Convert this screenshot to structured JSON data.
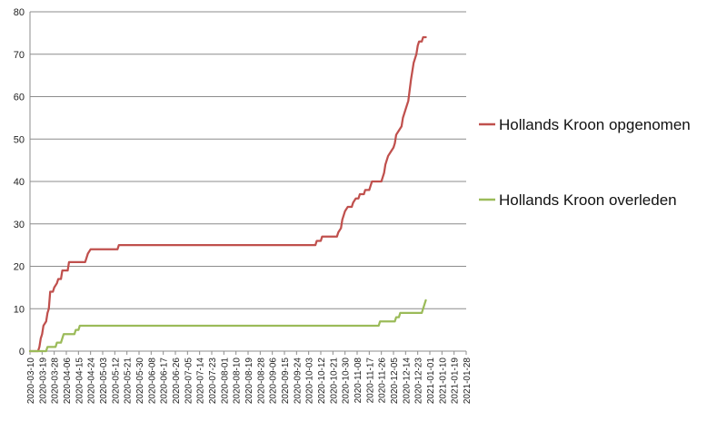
{
  "chart_data": {
    "type": "line",
    "title": "",
    "xlabel": "",
    "ylabel": "",
    "ylim": [
      0,
      80
    ],
    "yticks": [
      0,
      10,
      20,
      30,
      40,
      50,
      60,
      70,
      80
    ],
    "xlim": [
      "2020-03-10",
      "2021-01-28"
    ],
    "xtick_labels": [
      "2020-03-10",
      "2020-03-19",
      "2020-03-28",
      "2020-04-06",
      "2020-04-15",
      "2020-04-24",
      "2020-05-03",
      "2020-05-12",
      "2020-05-21",
      "2020-05-30",
      "2020-06-08",
      "2020-06-17",
      "2020-06-26",
      "2020-07-05",
      "2020-07-14",
      "2020-07-23",
      "2020-08-01",
      "2020-08-10",
      "2020-08-19",
      "2020-08-28",
      "2020-09-06",
      "2020-09-15",
      "2020-09-24",
      "2020-10-03",
      "2020-10-12",
      "2020-10-21",
      "2020-10-30",
      "2020-11-08",
      "2020-11-17",
      "2020-11-26",
      "2020-12-05",
      "2020-12-14",
      "2020-12-23",
      "2021-01-01",
      "2021-01-10",
      "2021-01-19",
      "2021-01-28"
    ],
    "grid": "horizontal",
    "legend_position": "right",
    "series": [
      {
        "name": "Hollands Kroon opgenomen",
        "color": "#c0504d",
        "points": [
          [
            "2020-03-10",
            0
          ],
          [
            "2020-03-16",
            0
          ],
          [
            "2020-03-17",
            1
          ],
          [
            "2020-03-18",
            3
          ],
          [
            "2020-03-19",
            4
          ],
          [
            "2020-03-20",
            6
          ],
          [
            "2020-03-22",
            7
          ],
          [
            "2020-03-23",
            9
          ],
          [
            "2020-03-24",
            10
          ],
          [
            "2020-03-25",
            14
          ],
          [
            "2020-03-27",
            14
          ],
          [
            "2020-03-28",
            15
          ],
          [
            "2020-03-30",
            16
          ],
          [
            "2020-03-31",
            17
          ],
          [
            "2020-04-02",
            17
          ],
          [
            "2020-04-03",
            19
          ],
          [
            "2020-04-07",
            19
          ],
          [
            "2020-04-08",
            21
          ],
          [
            "2020-04-20",
            21
          ],
          [
            "2020-04-22",
            23
          ],
          [
            "2020-04-24",
            24
          ],
          [
            "2020-05-14",
            24
          ],
          [
            "2020-05-15",
            25
          ],
          [
            "2020-10-08",
            25
          ],
          [
            "2020-10-09",
            26
          ],
          [
            "2020-10-12",
            26
          ],
          [
            "2020-10-13",
            27
          ],
          [
            "2020-10-24",
            27
          ],
          [
            "2020-10-25",
            28
          ],
          [
            "2020-10-27",
            29
          ],
          [
            "2020-10-28",
            31
          ],
          [
            "2020-10-30",
            33
          ],
          [
            "2020-11-01",
            34
          ],
          [
            "2020-11-04",
            34
          ],
          [
            "2020-11-05",
            35
          ],
          [
            "2020-11-07",
            36
          ],
          [
            "2020-11-09",
            36
          ],
          [
            "2020-11-10",
            37
          ],
          [
            "2020-11-13",
            37
          ],
          [
            "2020-11-14",
            38
          ],
          [
            "2020-11-17",
            38
          ],
          [
            "2020-11-18",
            39
          ],
          [
            "2020-11-19",
            40
          ],
          [
            "2020-11-26",
            40
          ],
          [
            "2020-11-27",
            41
          ],
          [
            "2020-11-28",
            42
          ],
          [
            "2020-11-29",
            44
          ],
          [
            "2020-12-01",
            46
          ],
          [
            "2020-12-03",
            47
          ],
          [
            "2020-12-05",
            48
          ],
          [
            "2020-12-06",
            49
          ],
          [
            "2020-12-07",
            51
          ],
          [
            "2020-12-09",
            52
          ],
          [
            "2020-12-11",
            53
          ],
          [
            "2020-12-12",
            55
          ],
          [
            "2020-12-14",
            57
          ],
          [
            "2020-12-16",
            59
          ],
          [
            "2020-12-18",
            64
          ],
          [
            "2020-12-19",
            66
          ],
          [
            "2020-12-20",
            68
          ],
          [
            "2020-12-22",
            70
          ],
          [
            "2020-12-23",
            72
          ],
          [
            "2020-12-24",
            73
          ],
          [
            "2020-12-26",
            73
          ],
          [
            "2020-12-27",
            74
          ],
          [
            "2020-12-29",
            74
          ]
        ]
      },
      {
        "name": "Hollands Kroon overleden",
        "color": "#9bbb59",
        "points": [
          [
            "2020-03-10",
            0
          ],
          [
            "2020-03-22",
            0
          ],
          [
            "2020-03-23",
            1
          ],
          [
            "2020-03-29",
            1
          ],
          [
            "2020-03-30",
            2
          ],
          [
            "2020-04-02",
            2
          ],
          [
            "2020-04-03",
            3
          ],
          [
            "2020-04-04",
            4
          ],
          [
            "2020-04-12",
            4
          ],
          [
            "2020-04-13",
            5
          ],
          [
            "2020-04-15",
            5
          ],
          [
            "2020-04-16",
            6
          ],
          [
            "2020-11-24",
            6
          ],
          [
            "2020-11-25",
            7
          ],
          [
            "2020-12-06",
            7
          ],
          [
            "2020-12-07",
            8
          ],
          [
            "2020-12-09",
            8
          ],
          [
            "2020-12-10",
            9
          ],
          [
            "2020-12-26",
            9
          ],
          [
            "2020-12-27",
            10
          ],
          [
            "2020-12-28",
            11
          ],
          [
            "2020-12-29",
            12
          ]
        ]
      }
    ]
  }
}
